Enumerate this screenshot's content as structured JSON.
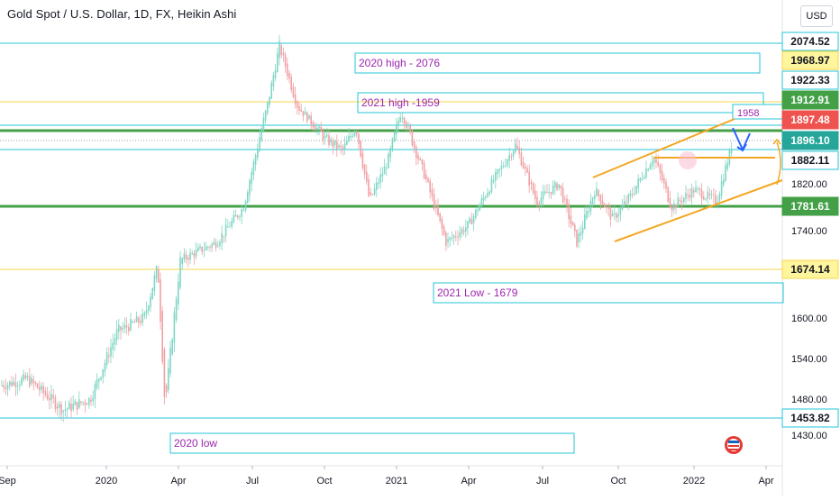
{
  "title": "Gold Spot / U.S. Dollar, 1D, FX, Heikin Ashi",
  "currency": "USD",
  "colors": {
    "up": "#7fd6c4",
    "down": "#f0a0a4",
    "teal_line": "#26c6da",
    "green_line": "#43a047",
    "yellow_line": "#f7d54a",
    "orange_line": "#f5a623",
    "blue_arrow": "#2962ff",
    "annotation_text": "#9c27b0"
  },
  "chart_data": {
    "type": "candlestick",
    "style": "Heikin Ashi",
    "x_ticks": [
      "Sep",
      "2020",
      "Apr",
      "Jul",
      "Oct",
      "2021",
      "Apr",
      "Jul",
      "Oct",
      "2022",
      "Apr"
    ],
    "y_ticks": [
      "1430.00",
      "1480.00",
      "1540.00",
      "1600.00",
      "1680.00",
      "1740.00",
      "1820.00"
    ],
    "price_tags": [
      {
        "label": "2074.52",
        "value": 2074.52,
        "bg": "#ffffff",
        "border": "#26c6da",
        "fg": "#131722"
      },
      {
        "label": "1968.97",
        "value": 1968.97,
        "bg": "#fff59d",
        "border": "#f7d54a",
        "fg": "#131722"
      },
      {
        "label": "1922.33",
        "value": 1922.33,
        "bg": "#ffffff",
        "border": "#26c6da",
        "fg": "#131722"
      },
      {
        "label": "1912.91",
        "value": 1912.91,
        "bg": "#43a047",
        "border": "#43a047",
        "fg": "#ffffff"
      },
      {
        "label": "1897.48",
        "value": 1897.48,
        "bg": "#ef5350",
        "border": "#ef5350",
        "fg": "#ffffff"
      },
      {
        "label": "1896.10",
        "value": 1896.1,
        "bg": "#26a69a",
        "border": "#26a69a",
        "fg": "#ffffff"
      },
      {
        "label": "1882.11",
        "value": 1882.11,
        "bg": "#ffffff",
        "border": "#26c6da",
        "fg": "#131722"
      },
      {
        "label": "1781.61",
        "value": 1781.61,
        "bg": "#43a047",
        "border": "#43a047",
        "fg": "#ffffff"
      },
      {
        "label": "1674.14",
        "value": 1674.14,
        "bg": "#fff59d",
        "border": "#f7d54a",
        "fg": "#131722"
      },
      {
        "label": "1453.82",
        "value": 1453.82,
        "bg": "#ffffff",
        "border": "#26c6da",
        "fg": "#131722"
      }
    ],
    "annotations": [
      {
        "text": "2020 high - 2076"
      },
      {
        "text": "2021 high -1959"
      },
      {
        "text": "2021 Low - 1679"
      },
      {
        "text": "2020 low"
      },
      {
        "text": "1958"
      }
    ]
  }
}
